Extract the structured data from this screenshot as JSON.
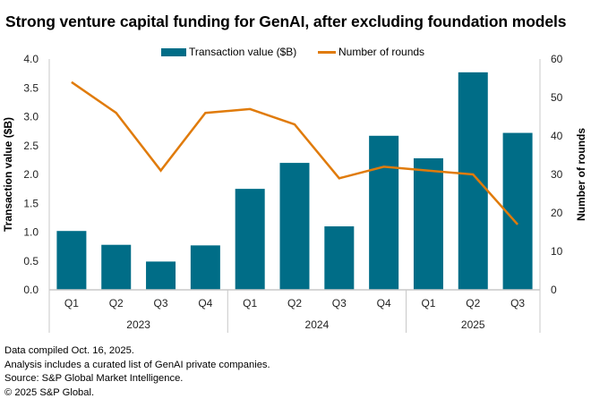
{
  "chart_data": {
    "type": "bar+line",
    "title": "Strong venture capital funding for GenAI, after excluding foundation models",
    "categories": [
      "Q1",
      "Q2",
      "Q3",
      "Q4",
      "Q1",
      "Q2",
      "Q3",
      "Q4",
      "Q1",
      "Q2",
      "Q3"
    ],
    "groups": [
      {
        "label": "2023",
        "count": 4
      },
      {
        "label": "2024",
        "count": 4
      },
      {
        "label": "2025",
        "count": 3
      }
    ],
    "series": [
      {
        "name": "Transaction value ($B)",
        "type": "bar",
        "axis": "left",
        "color": "#006d87",
        "values": [
          1.02,
          0.78,
          0.49,
          0.77,
          1.75,
          2.2,
          1.1,
          2.67,
          2.28,
          3.77,
          2.72
        ]
      },
      {
        "name": "Number of rounds",
        "type": "line",
        "axis": "right",
        "color": "#e07b0b",
        "values": [
          54,
          46,
          31,
          46,
          47,
          43,
          29,
          32,
          31,
          30,
          17
        ]
      }
    ],
    "ylabel": "Transaction value ($B)",
    "ylim": [
      0,
      4.0
    ],
    "yticks": [
      "0.0",
      "0.5",
      "1.0",
      "1.5",
      "2.0",
      "2.5",
      "3.0",
      "3.5",
      "4.0"
    ],
    "y2label": "Number of rounds",
    "y2lim": [
      0,
      60
    ],
    "y2ticks": [
      "0",
      "10",
      "20",
      "30",
      "40",
      "50",
      "60"
    ],
    "legend_position": "top-center",
    "grid": false
  },
  "footnotes": [
    "Data compiled Oct. 16, 2025.",
    "Analysis includes a curated list of GenAI private companies.",
    "Source: S&P Global Market Intelligence.",
    "© 2025 S&P Global."
  ]
}
